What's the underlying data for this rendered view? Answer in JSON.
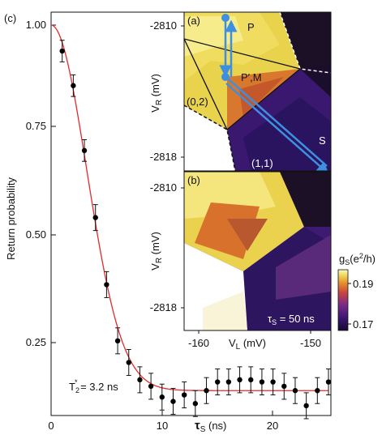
{
  "colors": {
    "fit_curve": "#e8282d",
    "data_points": "#000000",
    "arrows": "#3d8fe0",
    "colorbar_high": "#f7f4b0",
    "colorbar_mid": "#d8582e",
    "colorbar_low": "#1a0f3a"
  },
  "chart_data": [
    {
      "panel": "(c)",
      "type": "scatter",
      "xlabel": "τS (ns)",
      "ylabel": "Return probability",
      "xlim": [
        0,
        25.5
      ],
      "ylim": [
        0.09,
        1.02
      ],
      "xticks": [
        "0",
        "10",
        "20"
      ],
      "yticks": [
        "0.25",
        "0.50",
        "0.75",
        "1.00"
      ],
      "annotation": "T2* = 3.2 ns",
      "series": [
        {
          "points": [
            {
              "x": 1.0,
              "y": 0.94,
              "err": 0.025
            },
            {
              "x": 2.0,
              "y": 0.86,
              "err": 0.025
            },
            {
              "x": 3.0,
              "y": 0.71,
              "err": 0.025
            },
            {
              "x": 4.0,
              "y": 0.555,
              "err": 0.03
            },
            {
              "x": 5.0,
              "y": 0.4,
              "err": 0.03
            },
            {
              "x": 6.0,
              "y": 0.27,
              "err": 0.03
            },
            {
              "x": 7.0,
              "y": 0.22,
              "err": 0.03
            },
            {
              "x": 8.0,
              "y": 0.18,
              "err": 0.03
            },
            {
              "x": 9.0,
              "y": 0.165,
              "err": 0.03
            },
            {
              "x": 10.0,
              "y": 0.14,
              "err": 0.03
            },
            {
              "x": 11.0,
              "y": 0.13,
              "err": 0.03
            },
            {
              "x": 12.0,
              "y": 0.145,
              "err": 0.03
            },
            {
              "x": 13.0,
              "y": 0.125,
              "err": 0.03
            },
            {
              "x": 14.0,
              "y": 0.155,
              "err": 0.03
            },
            {
              "x": 15.0,
              "y": 0.175,
              "err": 0.03
            },
            {
              "x": 16.0,
              "y": 0.175,
              "err": 0.03
            },
            {
              "x": 17.0,
              "y": 0.18,
              "err": 0.03
            },
            {
              "x": 18.0,
              "y": 0.18,
              "err": 0.03
            },
            {
              "x": 19.0,
              "y": 0.175,
              "err": 0.03
            },
            {
              "x": 20.0,
              "y": 0.175,
              "err": 0.03
            },
            {
              "x": 21.0,
              "y": 0.165,
              "err": 0.03
            },
            {
              "x": 22.0,
              "y": 0.155,
              "err": 0.03
            },
            {
              "x": 23.0,
              "y": 0.12,
              "err": 0.03
            },
            {
              "x": 24.0,
              "y": 0.155,
              "err": 0.03
            },
            {
              "x": 25.0,
              "y": 0.175,
              "err": 0.03
            }
          ]
        }
      ],
      "fit": {
        "model": "gaussian decay",
        "y0": 1.0,
        "floor": 0.155,
        "T2_star_ns": 3.2
      }
    },
    {
      "panel": "(a)",
      "type": "heatmap",
      "ylabel": "VR (mV)",
      "yticks": [
        "-2810",
        "-2818"
      ],
      "region_labels": [
        "P",
        "P′,M",
        "(0,2)",
        "(1,1)",
        "S"
      ]
    },
    {
      "panel": "(b)",
      "type": "heatmap",
      "xlabel": "VL (mV)",
      "ylabel": "VR (mV)",
      "xticks": [
        "-160",
        "-150"
      ],
      "yticks": [
        "-2810",
        "-2818"
      ],
      "annotation": "τS = 50 ns",
      "colorbar": {
        "label": "gS (e²/h)",
        "ticks": [
          "0.19",
          "0.17"
        ]
      }
    }
  ],
  "text": {
    "panel_c": "(c)",
    "panel_a": "(a)",
    "panel_b": "(b)",
    "ylabel_c": "Return probability",
    "xlabel_c_main": "τ",
    "xlabel_c_sub": "S",
    "xlabel_c_unit": " (ns)",
    "t2_main": "T",
    "t2_sub": "2",
    "t2_sup": "*",
    "t2_rest": " = 3.2 ns",
    "vr_main": "V",
    "vr_sub": "R",
    "vr_unit": "  (mV)",
    "vl_main": "V",
    "vl_sub": "L",
    "vl_unit": "   (mV)",
    "label_P": "P",
    "label_PM": "P′,M",
    "label_02": "(0,2)",
    "label_11": "(1,1)",
    "label_S": "S",
    "tau_main": "τ",
    "tau_sub": "S",
    "tau_rest": " = 50 ns",
    "cb_main": "g",
    "cb_sub": "S",
    "cb_rest": "(e",
    "cb_sup": "2",
    "cb_end": "/h)"
  }
}
